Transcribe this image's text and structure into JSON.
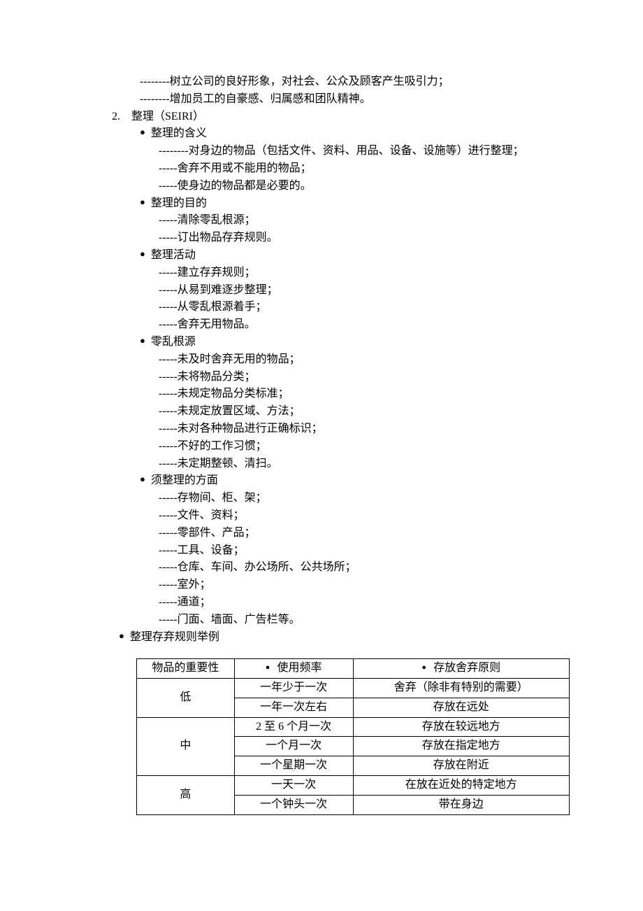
{
  "intro": [
    "--------树立公司的良好形象，对社会、公众及顾客产生吸引力；",
    "--------增加员工的自豪感、归属感和团队精神。"
  ],
  "section": {
    "num": "2.",
    "title": "整理（SEIRI）"
  },
  "items": [
    {
      "heading": "整理的含义",
      "lines": [
        "--------对身边的物品（包括文件、资料、用品、设备、设施等）进行整理；",
        "-----舍弃不用或不能用的物品；",
        "-----使身边的物品都是必要的。"
      ],
      "firstWrap": true
    },
    {
      "heading": "整理的目的",
      "lines": [
        "-----清除零乱根源；",
        "-----订出物品存弃规则。"
      ]
    },
    {
      "heading": "整理活动",
      "lines": [
        "-----建立存弃规则；",
        "-----从易到难逐步整理；",
        "-----从零乱根源着手；",
        "-----舍弃无用物品。"
      ]
    },
    {
      "heading": "零乱根源",
      "lines": [
        "-----未及时舍弃无用的物品；",
        "-----未将物品分类；",
        "-----未规定物品分类标准；",
        "-----未规定放置区域、方法；",
        "-----未对各种物品进行正确标识；",
        "-----不好的工作习惯；",
        "-----未定期整顿、清扫。"
      ]
    },
    {
      "heading": "须整理的方面",
      "lines": [
        "-----存物间、柜、架；",
        "-----文件、资料；",
        "-----零部件、产品；",
        "-----工具、设备；",
        "-----仓库、车间、办公场所、公共场所；",
        "-----室外；",
        "-----通道；",
        "-----门面、墙面、广告栏等。"
      ]
    }
  ],
  "lastBullet": "整理存弃规则举例",
  "table": {
    "headers": [
      "物品的重要性",
      "使用频率",
      "存放舍弃原则"
    ],
    "groups": [
      {
        "level": "低",
        "rows": [
          [
            "一年少于一次",
            "舍弃（除非有特别的需要）"
          ],
          [
            "一年一次左右",
            "存放在远处"
          ]
        ]
      },
      {
        "level": "中",
        "rows": [
          [
            "2 至 6 个月一次",
            "存放在较远地方"
          ],
          [
            "一个月一次",
            "存放在指定地方"
          ],
          [
            "一个星期一次",
            "存放在附近"
          ]
        ]
      },
      {
        "level": "高",
        "rows": [
          [
            "一天一次",
            "在放在近处的特定地方"
          ],
          [
            "一个钟头一次",
            "带在身边"
          ]
        ]
      }
    ],
    "colWidths": [
      "140px",
      "170px",
      "310px"
    ]
  }
}
